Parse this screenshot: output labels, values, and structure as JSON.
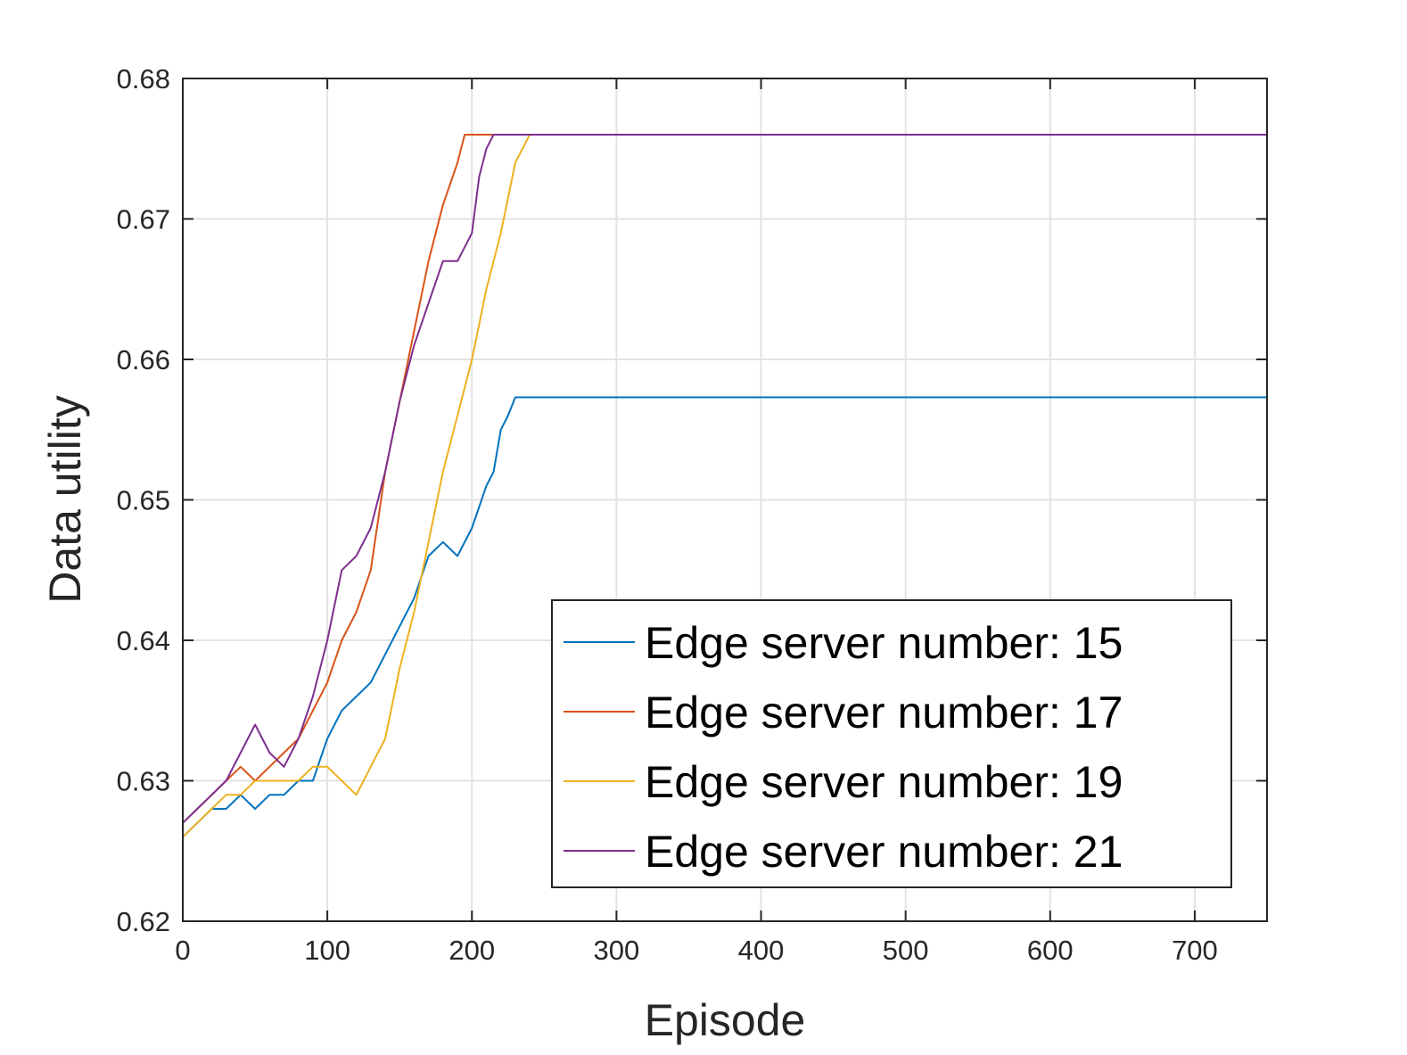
{
  "chart_data": {
    "type": "line",
    "title": "",
    "xlabel": "Episode",
    "ylabel": "Data utility",
    "xlim": [
      0,
      750
    ],
    "ylim": [
      0.62,
      0.68
    ],
    "xticks": [
      0,
      100,
      200,
      300,
      400,
      500,
      600,
      700
    ],
    "yticks": [
      0.62,
      0.63,
      0.64,
      0.65,
      0.66,
      0.67,
      0.68
    ],
    "xtick_labels": [
      "0",
      "100",
      "200",
      "300",
      "400",
      "500",
      "600",
      "700"
    ],
    "ytick_labels": [
      "0.62",
      "0.63",
      "0.64",
      "0.65",
      "0.66",
      "0.67",
      "0.68"
    ],
    "grid": true,
    "legend_position": "bottom-right",
    "series": [
      {
        "name": "Edge server number: 15",
        "color": "#0072BD",
        "x": [
          0,
          10,
          20,
          30,
          40,
          50,
          60,
          70,
          80,
          90,
          100,
          110,
          120,
          130,
          140,
          150,
          160,
          170,
          180,
          190,
          200,
          210,
          215,
          220,
          225,
          230,
          235,
          240,
          750
        ],
        "y": [
          0.626,
          0.627,
          0.628,
          0.628,
          0.629,
          0.628,
          0.629,
          0.629,
          0.63,
          0.63,
          0.633,
          0.635,
          0.636,
          0.637,
          0.639,
          0.641,
          0.643,
          0.646,
          0.647,
          0.646,
          0.648,
          0.651,
          0.652,
          0.655,
          0.656,
          0.6573,
          0.6573,
          0.6573,
          0.6573
        ]
      },
      {
        "name": "Edge server number: 17",
        "color": "#D95319",
        "x": [
          0,
          10,
          20,
          30,
          40,
          50,
          60,
          70,
          80,
          90,
          100,
          110,
          120,
          130,
          140,
          150,
          160,
          170,
          180,
          190,
          195,
          200,
          750
        ],
        "y": [
          0.627,
          0.628,
          0.629,
          0.63,
          0.631,
          0.63,
          0.631,
          0.632,
          0.633,
          0.635,
          0.637,
          0.64,
          0.642,
          0.645,
          0.652,
          0.657,
          0.662,
          0.667,
          0.671,
          0.674,
          0.676,
          0.676,
          0.676
        ]
      },
      {
        "name": "Edge server number: 19",
        "color": "#EDB120",
        "x": [
          0,
          10,
          20,
          30,
          40,
          50,
          60,
          70,
          80,
          90,
          100,
          110,
          120,
          130,
          140,
          150,
          160,
          170,
          180,
          190,
          200,
          210,
          220,
          230,
          235,
          240,
          750
        ],
        "y": [
          0.626,
          0.627,
          0.628,
          0.629,
          0.629,
          0.63,
          0.63,
          0.63,
          0.63,
          0.631,
          0.631,
          0.63,
          0.629,
          0.631,
          0.633,
          0.638,
          0.642,
          0.647,
          0.652,
          0.656,
          0.66,
          0.665,
          0.669,
          0.674,
          0.675,
          0.676,
          0.676
        ]
      },
      {
        "name": "Edge server number: 21",
        "color": "#7E2F8E",
        "x": [
          0,
          10,
          20,
          30,
          40,
          50,
          60,
          70,
          80,
          90,
          100,
          110,
          120,
          130,
          140,
          150,
          160,
          170,
          180,
          190,
          200,
          205,
          210,
          215,
          750
        ],
        "y": [
          0.627,
          0.628,
          0.629,
          0.63,
          0.632,
          0.634,
          0.632,
          0.631,
          0.633,
          0.636,
          0.64,
          0.645,
          0.646,
          0.648,
          0.652,
          0.657,
          0.661,
          0.664,
          0.667,
          0.667,
          0.669,
          0.673,
          0.675,
          0.676,
          0.676
        ]
      }
    ]
  }
}
